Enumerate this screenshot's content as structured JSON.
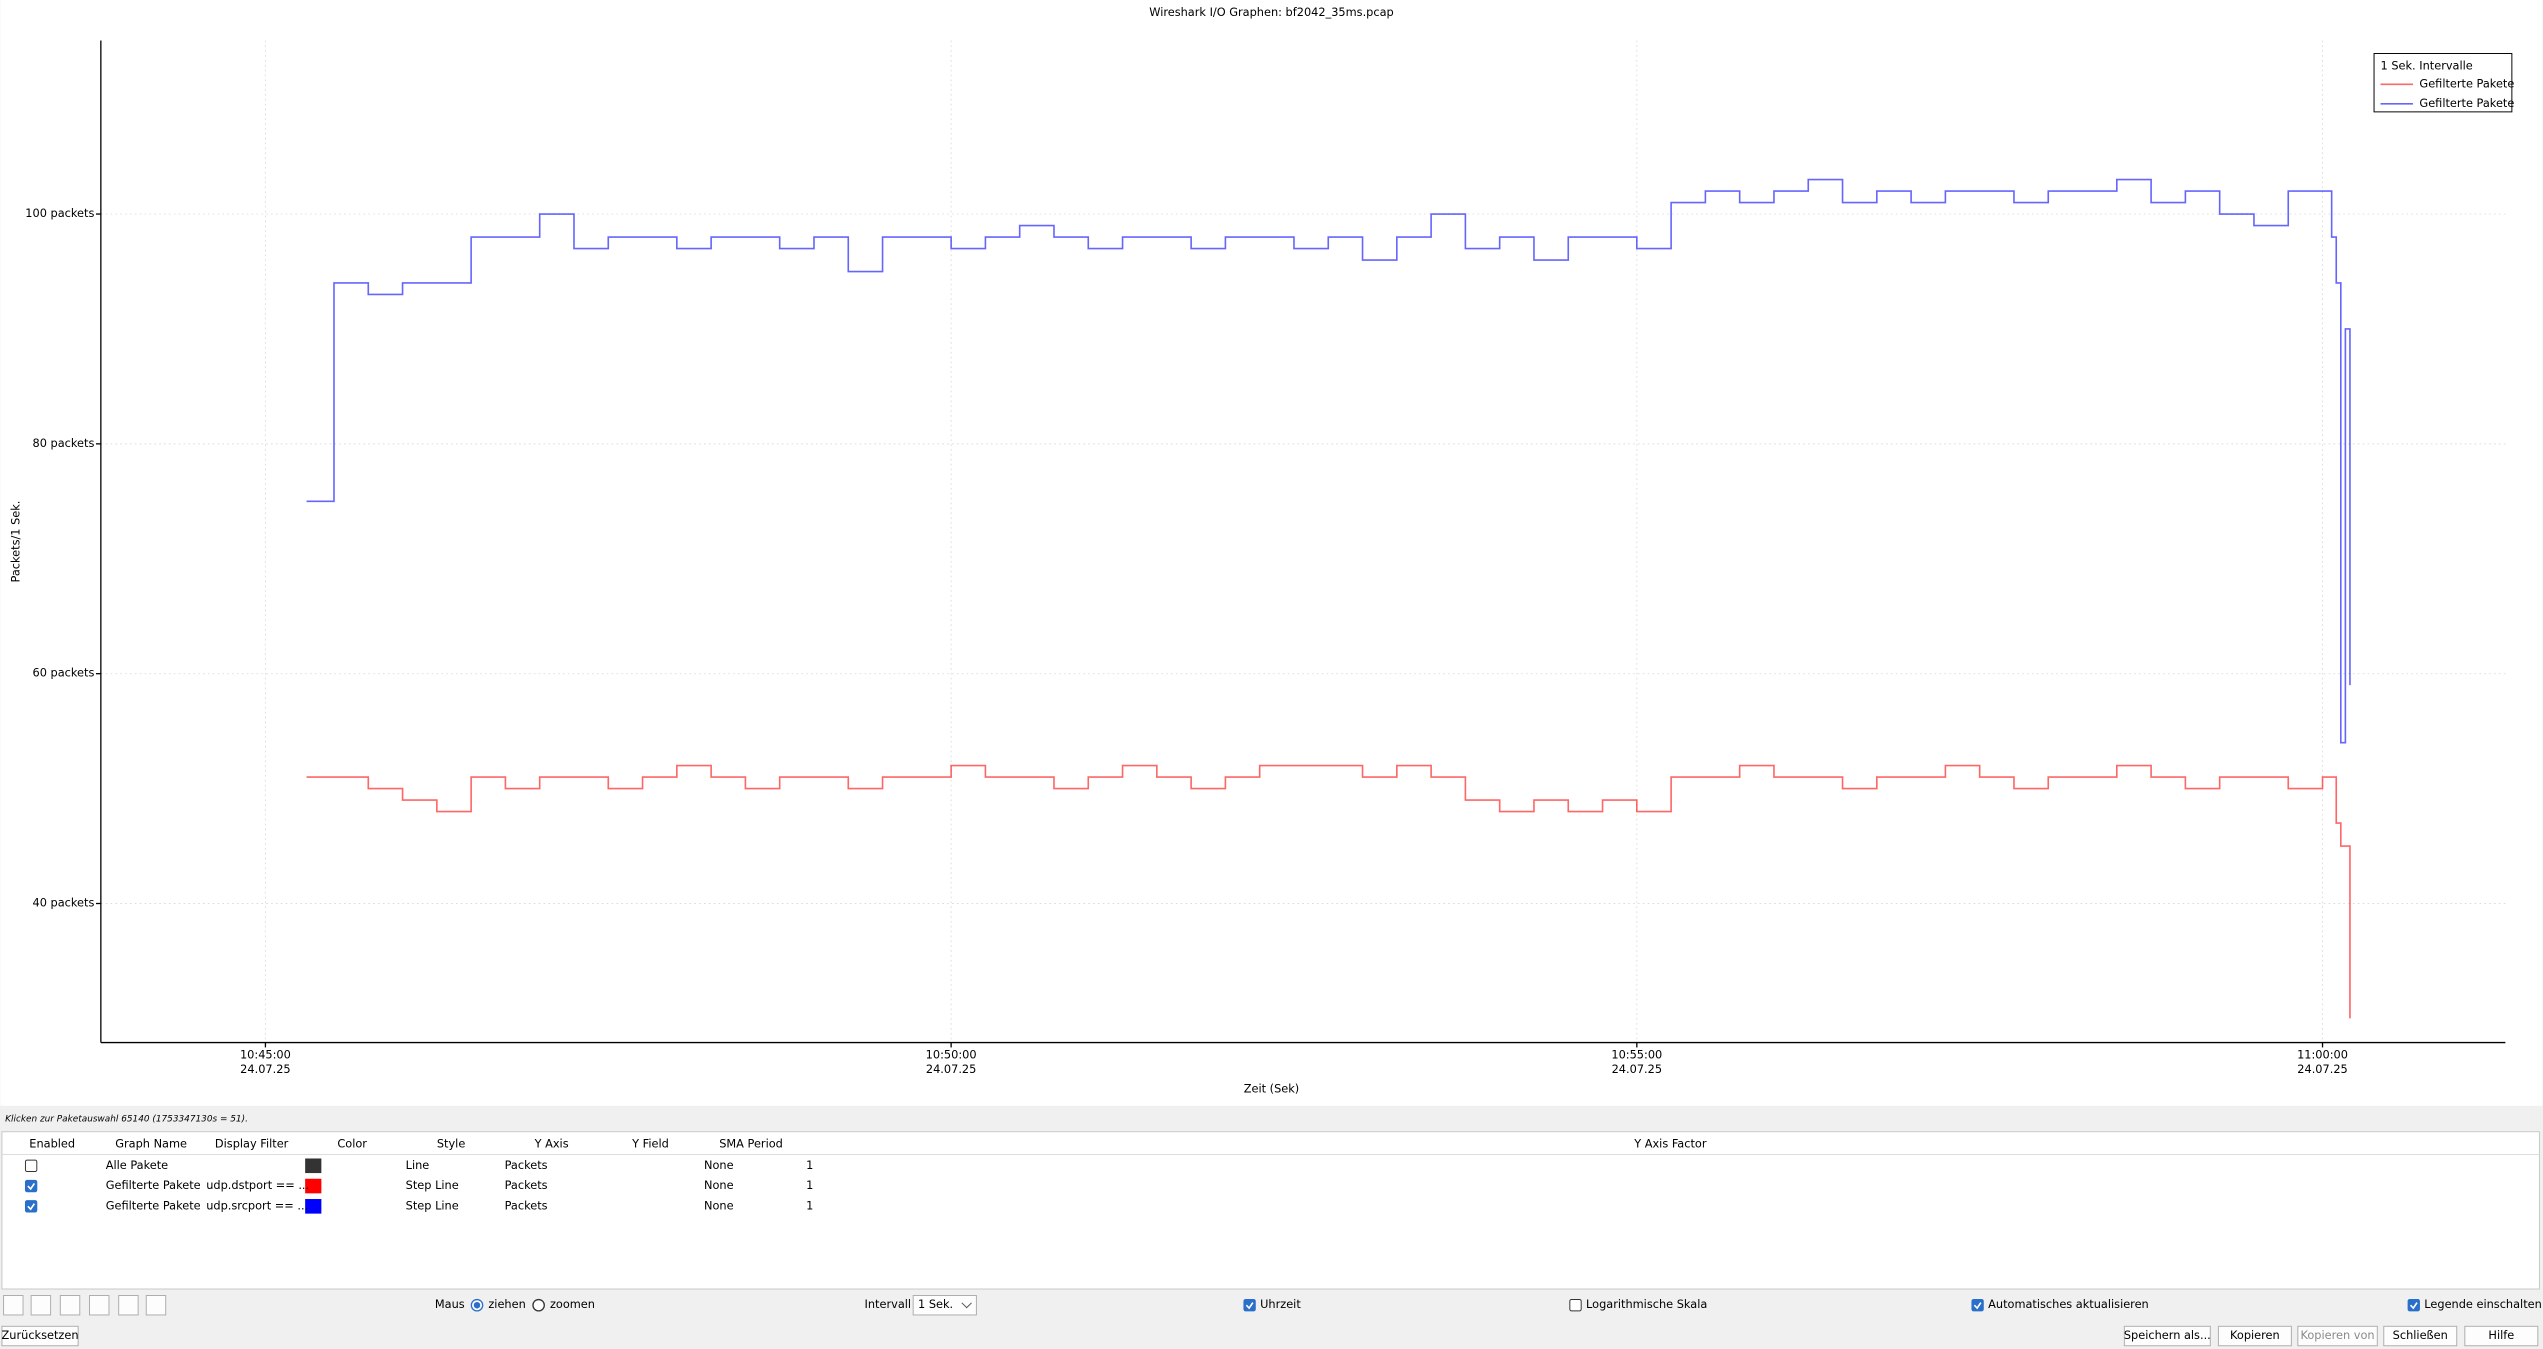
{
  "window": {
    "title": "Wireshark I/O Graphen: bf2042_35ms.pcap"
  },
  "chart_data": {
    "type": "line",
    "step": true,
    "ylabel": "Packets/1 Sek.",
    "xlabel": "Zeit (Sek)",
    "legend_title": "1 Sek. Intervalle",
    "legend": "top-right",
    "grid": true,
    "xlim": [
      38628,
      39680
    ],
    "ylim": [
      27.9,
      115.1
    ],
    "xticks": [
      {
        "value": 38700,
        "label": "10:45:00"
      },
      {
        "value": 39000,
        "label": "10:50:00"
      },
      {
        "value": 39300,
        "label": "10:55:00"
      },
      {
        "value": 39600,
        "label": "11:00:00"
      }
    ],
    "xtick_dates": [
      "24.07.25",
      "24.07.25",
      "24.07.25",
      "24.07.25"
    ],
    "yticks": [
      {
        "value": 40,
        "label": "40 packets"
      },
      {
        "value": 60,
        "label": "60 packets"
      },
      {
        "value": 80,
        "label": "80 packets"
      },
      {
        "value": 100,
        "label": "100 packets"
      }
    ],
    "x": [
      38718,
      38730,
      38745,
      38760,
      38775,
      38790,
      38805,
      38820,
      38835,
      38850,
      38865,
      38880,
      38895,
      38910,
      38925,
      38940,
      38955,
      38970,
      38985,
      39000,
      39015,
      39030,
      39045,
      39060,
      39075,
      39090,
      39105,
      39120,
      39135,
      39150,
      39165,
      39180,
      39195,
      39210,
      39225,
      39240,
      39255,
      39270,
      39285,
      39300,
      39315,
      39330,
      39345,
      39360,
      39375,
      39390,
      39405,
      39420,
      39435,
      39450,
      39465,
      39480,
      39495,
      39510,
      39525,
      39540,
      39555,
      39570,
      39585,
      39600,
      39604,
      39606,
      39608,
      39610,
      39612
    ],
    "series": [
      {
        "name": "Gefilterte Pakete",
        "color": "#ff0000",
        "values": [
          51,
          51,
          50,
          49,
          48,
          51,
          50,
          51,
          51,
          50,
          51,
          52,
          51,
          50,
          51,
          51,
          50,
          51,
          51,
          52,
          51,
          51,
          50,
          51,
          52,
          51,
          50,
          51,
          52,
          52,
          52,
          51,
          52,
          51,
          49,
          48,
          49,
          48,
          49,
          48,
          51,
          51,
          52,
          51,
          51,
          50,
          51,
          51,
          52,
          51,
          50,
          51,
          51,
          52,
          51,
          50,
          51,
          51,
          50,
          51,
          51,
          47,
          45,
          45,
          30
        ]
      },
      {
        "name": "Gefilterte Pakete",
        "color": "#0000ff",
        "values": [
          75,
          94,
          93,
          94,
          94,
          98,
          98,
          100,
          97,
          98,
          98,
          97,
          98,
          98,
          97,
          98,
          95,
          98,
          98,
          97,
          98,
          99,
          98,
          97,
          98,
          98,
          97,
          98,
          98,
          97,
          98,
          96,
          98,
          100,
          97,
          98,
          96,
          98,
          98,
          97,
          101,
          102,
          101,
          102,
          103,
          101,
          102,
          101,
          102,
          102,
          101,
          102,
          102,
          103,
          101,
          102,
          100,
          99,
          102,
          102,
          98,
          94,
          54,
          90,
          59
        ]
      }
    ]
  },
  "status": "Klicken zur Paketauswahl 65140 (1753347130s = 51).",
  "table": {
    "headers": [
      "Enabled",
      "Graph Name",
      "Display Filter",
      "Color",
      "Style",
      "Y Axis",
      "Y Field",
      "SMA Period",
      "Y Axis Factor"
    ],
    "rows": [
      {
        "enabled": false,
        "name": "Alle Pakete",
        "color": "#333333",
        "style": "Line",
        "y_axis": "Packets",
        "sma_period": "None",
        "y_axis_factor": 1
      },
      {
        "enabled": true,
        "name": "Gefilterte Pakete",
        "display_filter": "udp.dstport == ...",
        "color": "#ff0000",
        "style": "Step Line",
        "y_axis": "Packets",
        "sma_period": "None",
        "y_axis_factor": 1
      },
      {
        "enabled": true,
        "name": "Gefilterte Pakete",
        "display_filter": "udp.srcport == ...",
        "color": "#0000ff",
        "style": "Step Line",
        "y_axis": "Packets",
        "sma_period": "None",
        "y_axis_factor": 1
      }
    ]
  },
  "controls": {
    "mouse_label": "Maus",
    "mouse_modes": [
      {
        "label": "ziehen",
        "selected": true
      },
      {
        "label": "zoomen",
        "selected": false
      }
    ],
    "interval_label": "Intervall",
    "interval": "1 Sek.",
    "checkboxes": [
      {
        "label": "Uhrzeit",
        "checked": true
      },
      {
        "label": "Logarithmische Skala",
        "checked": false
      },
      {
        "label": "Automatisches aktualisieren",
        "checked": true
      },
      {
        "label": "Legende einschalten",
        "checked": true
      }
    ]
  },
  "buttons": [
    "Zurücksetzen",
    "Speichern als...",
    "Kopieren",
    "Kopieren von",
    "Schließen",
    "Hilfe"
  ]
}
